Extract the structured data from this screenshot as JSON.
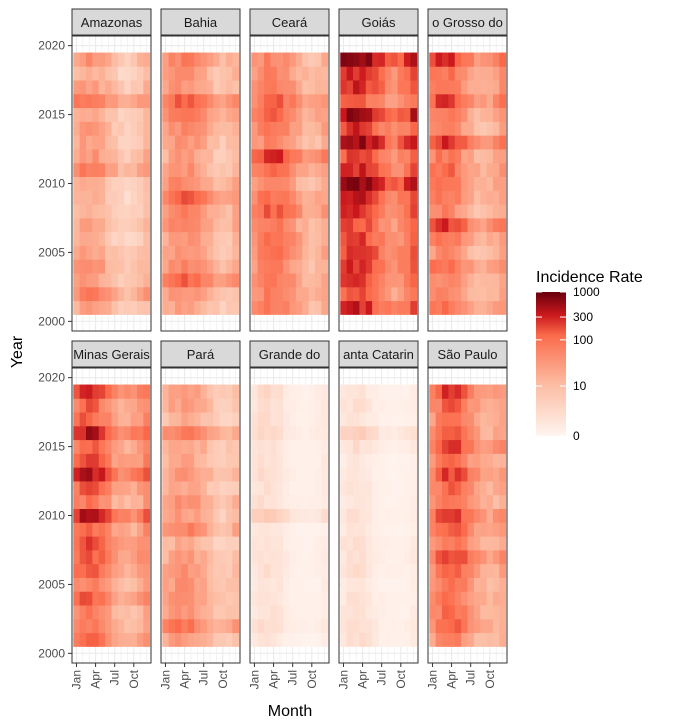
{
  "chart_data": {
    "type": "heatmap",
    "xlabel": "Month",
    "ylabel": "Year",
    "x_ticks": [
      "Jan",
      "Apr",
      "Jul",
      "Oct"
    ],
    "y_ticks": [
      "2000",
      "2005",
      "2010",
      "2015",
      "2020"
    ],
    "years": [
      2001,
      2019
    ],
    "months": [
      1,
      12
    ],
    "legend": {
      "title": "Incidence Rate",
      "scale": "log1p",
      "breaks": [
        "0",
        "10",
        "100",
        "300",
        "1000"
      ],
      "colors": [
        "#fff5f0",
        "#fcbba1",
        "#fb6a4a",
        "#cb181d",
        "#67000d"
      ]
    },
    "facets": [
      {
        "label": "Amazonas",
        "level": 30,
        "peak_month": 3,
        "spread": 4.5,
        "strong_years": [
          2002,
          2011,
          2016
        ]
      },
      {
        "label": "Bahia",
        "level": 60,
        "peak_month": 4,
        "spread": 5,
        "strong_years": [
          2003,
          2009,
          2016
        ]
      },
      {
        "label": "Ceará",
        "level": 80,
        "peak_month": 4,
        "spread": 4.5,
        "strong_years": [
          2008,
          2012,
          2016
        ]
      },
      {
        "label": "Goiás",
        "level": 250,
        "peak_month": 3,
        "spread": 5,
        "strong_years": [
          2010,
          2013,
          2015,
          2019
        ]
      },
      {
        "label": "o Grosso do",
        "level": 90,
        "peak_month": 3,
        "spread": 3.8,
        "strong_years": [
          2007,
          2013,
          2016,
          2019
        ]
      },
      {
        "label": "Minas Gerais",
        "level": 130,
        "peak_month": 3,
        "spread": 3.2,
        "strong_years": [
          2010,
          2013,
          2016,
          2019
        ]
      },
      {
        "label": "Pará",
        "level": 35,
        "peak_month": 4,
        "spread": 5,
        "strong_years": [
          2002,
          2009,
          2016
        ]
      },
      {
        "label": "Grande do",
        "level": 1.8,
        "peak_month": 3,
        "spread": 3,
        "strong_years": [
          2010,
          2016
        ]
      },
      {
        "label": "anta Catarin",
        "level": 1.5,
        "peak_month": 3,
        "spread": 3,
        "strong_years": [
          2016
        ]
      },
      {
        "label": "São Paulo",
        "level": 110,
        "peak_month": 4,
        "spread": 3.2,
        "strong_years": [
          2007,
          2010,
          2013,
          2015,
          2019
        ]
      }
    ]
  }
}
